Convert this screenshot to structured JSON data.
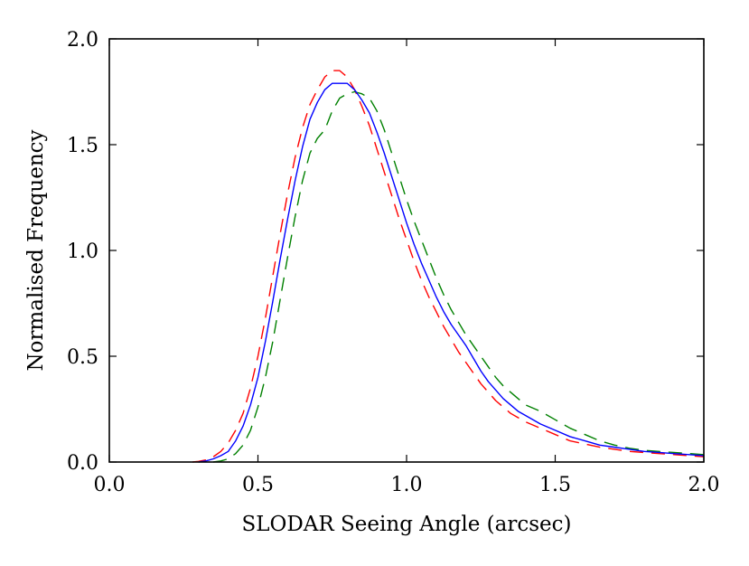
{
  "chart_data": {
    "type": "line",
    "title": "",
    "xlabel": "SLODAR Seeing Angle (arcsec)",
    "ylabel": "Normalised Frequency",
    "xlim": [
      0.0,
      2.0
    ],
    "ylim": [
      0.0,
      2.0
    ],
    "x_ticks": [
      0.0,
      0.5,
      1.0,
      1.5,
      2.0
    ],
    "x_tick_labels": [
      "0.0",
      "0.5",
      "1.0",
      "1.5",
      "2.0"
    ],
    "y_ticks": [
      0.0,
      0.5,
      1.0,
      1.5,
      2.0
    ],
    "y_tick_labels": [
      "0.0",
      "0.5",
      "1.0",
      "1.5",
      "2.0"
    ],
    "grid": false,
    "legend": "none",
    "series": [
      {
        "name": "blue-solid",
        "color": "#0000ff",
        "dash": "solid",
        "x": [
          0.3,
          0.325,
          0.35,
          0.375,
          0.4,
          0.425,
          0.45,
          0.475,
          0.5,
          0.525,
          0.55,
          0.575,
          0.6,
          0.625,
          0.65,
          0.675,
          0.7,
          0.725,
          0.75,
          0.775,
          0.8,
          0.825,
          0.85,
          0.875,
          0.9,
          0.925,
          0.95,
          0.975,
          1.0,
          1.025,
          1.05,
          1.075,
          1.1,
          1.125,
          1.15,
          1.175,
          1.2,
          1.225,
          1.25,
          1.275,
          1.3,
          1.325,
          1.35,
          1.375,
          1.4,
          1.45,
          1.5,
          1.55,
          1.6,
          1.65,
          1.7,
          1.75,
          1.8,
          1.85,
          1.9,
          1.95,
          2.0
        ],
        "values": [
          0.0,
          0.005,
          0.015,
          0.03,
          0.05,
          0.1,
          0.17,
          0.27,
          0.4,
          0.57,
          0.76,
          0.96,
          1.15,
          1.33,
          1.49,
          1.62,
          1.7,
          1.76,
          1.79,
          1.79,
          1.79,
          1.76,
          1.71,
          1.65,
          1.56,
          1.46,
          1.35,
          1.24,
          1.13,
          1.03,
          0.94,
          0.86,
          0.78,
          0.71,
          0.65,
          0.6,
          0.55,
          0.49,
          0.43,
          0.38,
          0.34,
          0.3,
          0.27,
          0.24,
          0.22,
          0.18,
          0.15,
          0.12,
          0.1,
          0.08,
          0.07,
          0.06,
          0.05,
          0.045,
          0.04,
          0.035,
          0.03
        ]
      },
      {
        "name": "red-dashed",
        "color": "#ff0000",
        "dash": "dashed",
        "x": [
          0.28,
          0.3,
          0.325,
          0.35,
          0.375,
          0.4,
          0.425,
          0.45,
          0.475,
          0.5,
          0.525,
          0.55,
          0.575,
          0.6,
          0.625,
          0.65,
          0.675,
          0.7,
          0.725,
          0.75,
          0.775,
          0.8,
          0.825,
          0.85,
          0.875,
          0.9,
          0.925,
          0.95,
          0.975,
          1.0,
          1.025,
          1.05,
          1.075,
          1.1,
          1.125,
          1.15,
          1.175,
          1.2,
          1.225,
          1.25,
          1.275,
          1.3,
          1.325,
          1.35,
          1.375,
          1.4,
          1.45,
          1.5,
          1.55,
          1.6,
          1.65,
          1.7,
          1.75,
          1.8,
          1.85,
          1.9,
          1.95,
          2.0
        ],
        "values": [
          0.0,
          0.003,
          0.01,
          0.025,
          0.05,
          0.09,
          0.15,
          0.23,
          0.35,
          0.5,
          0.68,
          0.88,
          1.08,
          1.27,
          1.44,
          1.58,
          1.69,
          1.76,
          1.82,
          1.85,
          1.85,
          1.82,
          1.76,
          1.68,
          1.59,
          1.48,
          1.37,
          1.26,
          1.15,
          1.05,
          0.95,
          0.86,
          0.78,
          0.71,
          0.64,
          0.58,
          0.52,
          0.47,
          0.42,
          0.37,
          0.33,
          0.29,
          0.26,
          0.23,
          0.21,
          0.19,
          0.16,
          0.13,
          0.1,
          0.085,
          0.07,
          0.06,
          0.05,
          0.045,
          0.04,
          0.035,
          0.03,
          0.025
        ]
      },
      {
        "name": "green-dashed",
        "color": "#008000",
        "dash": "dashed",
        "x": [
          0.35,
          0.375,
          0.4,
          0.425,
          0.45,
          0.475,
          0.5,
          0.525,
          0.55,
          0.575,
          0.6,
          0.625,
          0.65,
          0.675,
          0.7,
          0.725,
          0.75,
          0.775,
          0.8,
          0.825,
          0.85,
          0.875,
          0.9,
          0.925,
          0.95,
          0.975,
          1.0,
          1.025,
          1.05,
          1.075,
          1.1,
          1.125,
          1.15,
          1.175,
          1.2,
          1.225,
          1.25,
          1.275,
          1.3,
          1.325,
          1.35,
          1.375,
          1.4,
          1.45,
          1.5,
          1.55,
          1.6,
          1.65,
          1.7,
          1.75,
          1.8,
          1.85,
          1.9,
          1.95,
          2.0
        ],
        "values": [
          0.0,
          0.005,
          0.015,
          0.04,
          0.08,
          0.15,
          0.26,
          0.4,
          0.57,
          0.77,
          0.97,
          1.16,
          1.33,
          1.46,
          1.53,
          1.57,
          1.66,
          1.72,
          1.74,
          1.75,
          1.74,
          1.72,
          1.66,
          1.57,
          1.46,
          1.35,
          1.24,
          1.14,
          1.05,
          0.96,
          0.87,
          0.79,
          0.72,
          0.66,
          0.6,
          0.55,
          0.5,
          0.45,
          0.4,
          0.36,
          0.33,
          0.3,
          0.27,
          0.24,
          0.2,
          0.16,
          0.13,
          0.1,
          0.08,
          0.065,
          0.055,
          0.05,
          0.045,
          0.04,
          0.035
        ]
      }
    ]
  }
}
